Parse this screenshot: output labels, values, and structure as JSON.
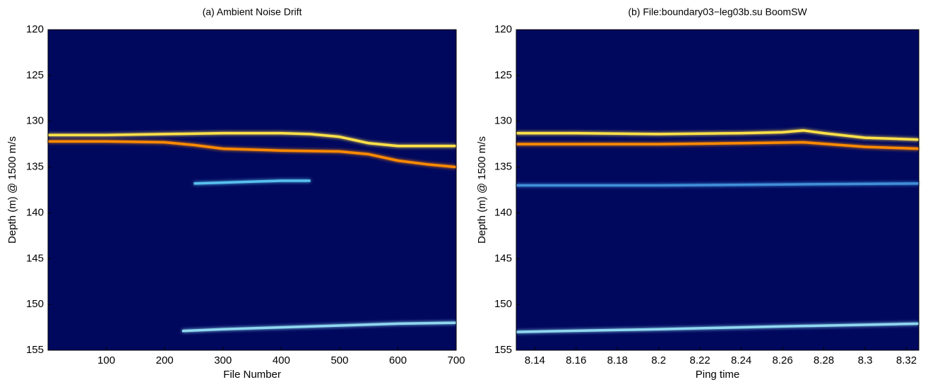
{
  "chart_data": [
    {
      "type": "heatmap",
      "title": "(a)   Ambient Noise Drift",
      "x_label": "File Number",
      "y_label": "Depth (m) @ 1500 m/s",
      "xlim": [
        0,
        700
      ],
      "xticks": [
        100,
        200,
        300,
        400,
        500,
        600,
        700
      ],
      "ylim": [
        155,
        120
      ],
      "yticks": [
        120,
        125,
        130,
        135,
        140,
        145,
        150,
        155
      ],
      "background": "#00085e",
      "series": [
        {
          "color": "#ffe14a",
          "x": [
            0,
            100,
            200,
            300,
            400,
            450,
            500,
            550,
            600,
            700
          ],
          "values": [
            131.5,
            131.5,
            131.4,
            131.3,
            131.3,
            131.4,
            131.7,
            132.4,
            132.7,
            132.7
          ]
        },
        {
          "color": "#ff8a00",
          "x": [
            0,
            100,
            200,
            250,
            300,
            400,
            500,
            550,
            600,
            650,
            700
          ],
          "values": [
            132.2,
            132.2,
            132.3,
            132.6,
            133,
            133.2,
            133.3,
            133.6,
            134.3,
            134.7,
            135
          ]
        },
        {
          "color": "#58c0ee",
          "x": [
            250,
            300,
            350,
            400,
            450
          ],
          "values": [
            136.8,
            136.7,
            136.6,
            136.5,
            136.5
          ]
        },
        {
          "color": "#8fd8f0",
          "x": [
            230,
            300,
            400,
            500,
            600,
            700
          ],
          "values": [
            152.9,
            152.7,
            152.5,
            152.3,
            152.1,
            152
          ]
        }
      ]
    },
    {
      "type": "heatmap",
      "title": "(b)   File:boundary03−leg03b.su BoomSW",
      "x_label": "Ping time",
      "y_label": "Depth (m) @ 1500 m/s",
      "xlim": [
        8.131,
        8.326
      ],
      "xticks": [
        8.14,
        8.16,
        8.18,
        8.2,
        8.22,
        8.24,
        8.26,
        8.28,
        8.3,
        8.32
      ],
      "ylim": [
        155,
        120
      ],
      "yticks": [
        120,
        125,
        130,
        135,
        140,
        145,
        150,
        155
      ],
      "background": "#00085e",
      "series": [
        {
          "color": "#ffe14a",
          "x": [
            8.131,
            8.16,
            8.2,
            8.24,
            8.26,
            8.27,
            8.28,
            8.3,
            8.326
          ],
          "values": [
            131.3,
            131.3,
            131.4,
            131.3,
            131.2,
            131,
            131.3,
            131.8,
            132
          ]
        },
        {
          "color": "#ff8a00",
          "x": [
            8.131,
            8.16,
            8.2,
            8.24,
            8.27,
            8.3,
            8.326
          ],
          "values": [
            132.5,
            132.5,
            132.5,
            132.4,
            132.3,
            132.8,
            133
          ]
        },
        {
          "color": "#3f8fd8",
          "x": [
            8.131,
            8.2,
            8.26,
            8.326
          ],
          "values": [
            137,
            137,
            136.9,
            136.8
          ]
        },
        {
          "color": "#8fd8f0",
          "x": [
            8.131,
            8.2,
            8.26,
            8.326
          ],
          "values": [
            153,
            152.7,
            152.4,
            152.1
          ]
        }
      ]
    }
  ]
}
